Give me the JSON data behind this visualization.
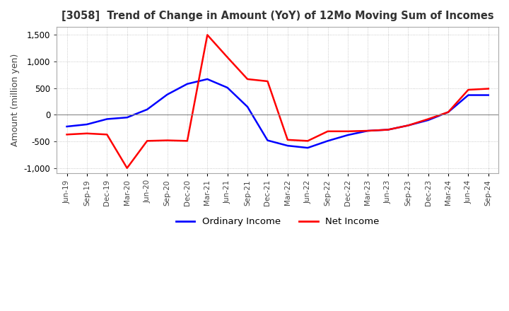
{
  "title": "[3058]  Trend of Change in Amount (YoY) of 12Mo Moving Sum of Incomes",
  "ylabel": "Amount (million yen)",
  "ylim": [
    -1100,
    1650
  ],
  "yticks": [
    -1000,
    -500,
    0,
    500,
    1000,
    1500
  ],
  "background_color": "#ffffff",
  "grid_color": "#bbbbbb",
  "legend_labels": [
    "Ordinary Income",
    "Net Income"
  ],
  "line_colors": [
    "#0000ff",
    "#ff0000"
  ],
  "x_labels": [
    "Jun-19",
    "Sep-19",
    "Dec-19",
    "Mar-20",
    "Jun-20",
    "Sep-20",
    "Dec-20",
    "Mar-21",
    "Jun-21",
    "Sep-21",
    "Dec-21",
    "Mar-22",
    "Jun-22",
    "Sep-22",
    "Dec-22",
    "Mar-23",
    "Jun-23",
    "Sep-23",
    "Dec-23",
    "Mar-24",
    "Jun-24",
    "Sep-24"
  ],
  "ordinary_income": [
    -220,
    -180,
    -80,
    -50,
    100,
    380,
    580,
    670,
    510,
    150,
    -480,
    -580,
    -620,
    -490,
    -380,
    -300,
    -280,
    -200,
    -100,
    50,
    370,
    370
  ],
  "net_income": [
    -370,
    -350,
    -370,
    -1000,
    -490,
    -480,
    -490,
    1500,
    1080,
    670,
    630,
    -470,
    -490,
    -310,
    -310,
    -300,
    -280,
    -200,
    -80,
    50,
    470,
    490
  ]
}
